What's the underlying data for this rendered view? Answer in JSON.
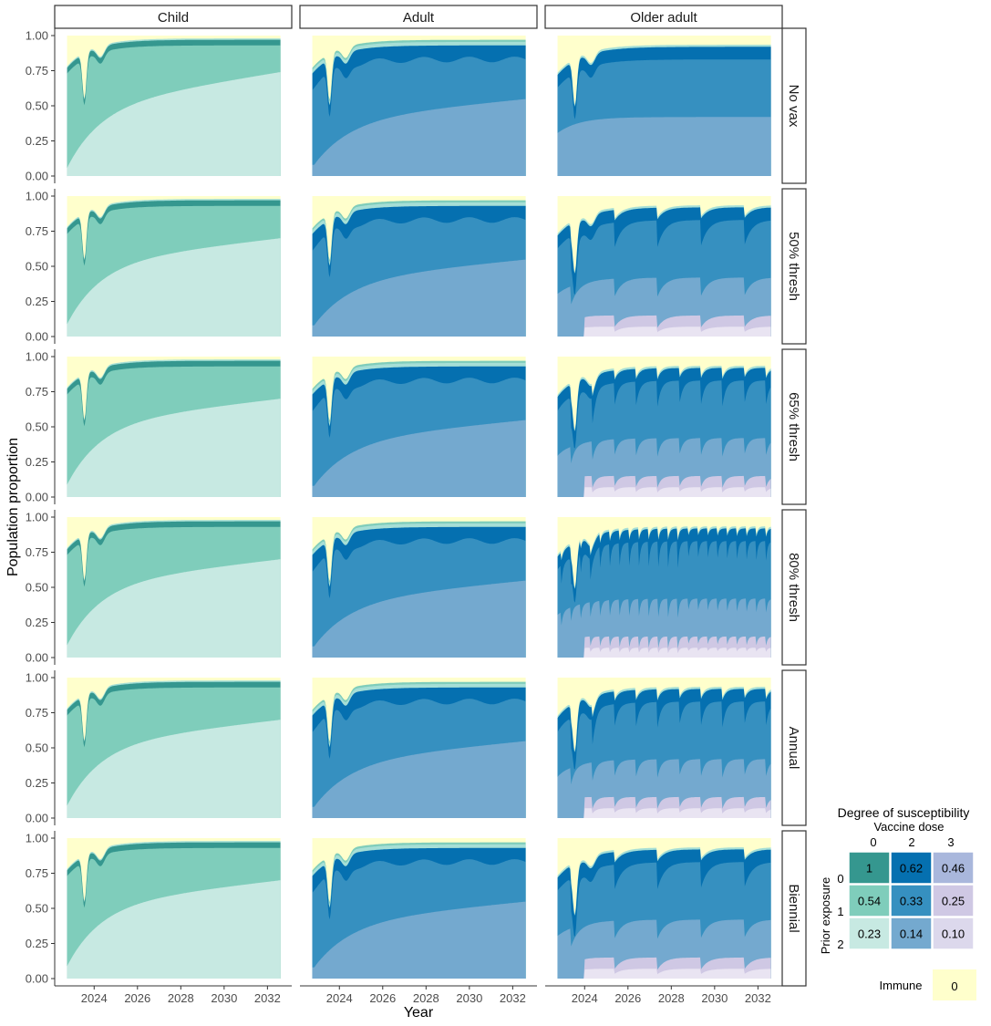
{
  "chart_data": {
    "type": "area",
    "xlabel": "Year",
    "ylabel": "Population proportion",
    "xlim": [
      2022.6,
      2032.7
    ],
    "ylim": [
      0,
      1
    ],
    "x_ticks": [
      "2024",
      "2026",
      "2028",
      "2030",
      "2032"
    ],
    "y_ticks": [
      "0.00",
      "0.25",
      "0.50",
      "0.75",
      "1.00"
    ],
    "columns": [
      "Child",
      "Adult",
      "Older adult"
    ],
    "rows": [
      "No vax",
      "50% thresh",
      "65% thresh",
      "80% thresh",
      "Annual",
      "Biennial"
    ],
    "row_params": [
      {
        "period": 0
      },
      {
        "period": 2.0
      },
      {
        "period": 1.0
      },
      {
        "period": 0.45
      },
      {
        "period": 1.0
      },
      {
        "period": 2.0
      }
    ],
    "column_colors": {
      "Child": [
        "#c7e9e2",
        "#7fcdbb",
        "#35978f"
      ],
      "Adult": [
        "#74a9cf",
        "#3690c0",
        "#0570b0"
      ],
      "Older adult": [
        "#e9e4f2",
        "#cfc8e4",
        "#74a9cf",
        "#3690c0",
        "#0570b0"
      ]
    },
    "top_colors": [
      "#a6dfd6",
      "#7fcdbb",
      "#ffffcc"
    ],
    "series_note": "stacked area: susceptibility classes by prior exposure × vaccine dose, immune remainder on top",
    "legend": {
      "title": "Degree of susceptibility",
      "col_title": "Vaccine dose",
      "row_title": "Prior exposure",
      "col_labels": [
        "0",
        "2",
        "3"
      ],
      "row_labels": [
        "0",
        "1",
        "2"
      ],
      "cells": [
        [
          {
            "value": "1",
            "color": "#35978f"
          },
          {
            "value": "0.62",
            "color": "#0570b0"
          },
          {
            "value": "0.46",
            "color": "#a9b7dc"
          }
        ],
        [
          {
            "value": "0.54",
            "color": "#7fcdbb"
          },
          {
            "value": "0.33",
            "color": "#3690c0"
          },
          {
            "value": "0.25",
            "color": "#cfc8e4"
          }
        ],
        [
          {
            "value": "0.23",
            "color": "#c7e9e2"
          },
          {
            "value": "0.14",
            "color": "#74a9cf"
          },
          {
            "value": "0.10",
            "color": "#dcd8ec"
          }
        ]
      ],
      "immune_label": "Immune",
      "immune_value": "0",
      "immune_color": "#ffffcc"
    }
  }
}
